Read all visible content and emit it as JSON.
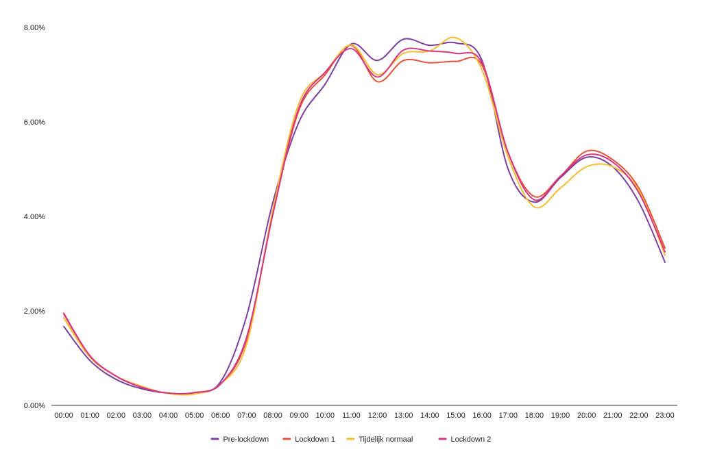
{
  "chart_data": {
    "type": "line",
    "title": "",
    "xlabel": "",
    "ylabel": "",
    "ylim": [
      0,
      8
    ],
    "y_ticks": [
      0,
      2,
      4,
      6,
      8
    ],
    "y_tick_labels": [
      "0.00%",
      "2.00%",
      "4.00%",
      "6.00%",
      "8.00%"
    ],
    "y_unit": "%",
    "grid": false,
    "legend_position": "bottom",
    "categories": [
      "00:00",
      "01:00",
      "02:00",
      "03:00",
      "04:00",
      "05:00",
      "06:00",
      "07:00",
      "08:00",
      "09:00",
      "10:00",
      "11:00",
      "12:00",
      "13:00",
      "14:00",
      "15:00",
      "16:00",
      "17:00",
      "18:00",
      "19:00",
      "20:00",
      "21:00",
      "22:00",
      "23:00"
    ],
    "series": [
      {
        "name": "Pre-lockdown",
        "color": "#7b3fa0",
        "values": [
          1.67,
          0.95,
          0.55,
          0.35,
          0.26,
          0.27,
          0.5,
          1.9,
          4.3,
          6.0,
          6.8,
          7.65,
          7.3,
          7.75,
          7.62,
          7.67,
          7.3,
          5.0,
          4.3,
          4.82,
          5.25,
          5.05,
          4.3,
          3.03
        ]
      },
      {
        "name": "Lockdown 1",
        "color": "#e8513a",
        "values": [
          1.93,
          1.05,
          0.62,
          0.38,
          0.26,
          0.27,
          0.45,
          1.4,
          4.05,
          6.25,
          7.0,
          7.62,
          6.85,
          7.3,
          7.25,
          7.28,
          7.2,
          5.35,
          4.42,
          4.85,
          5.38,
          5.2,
          4.6,
          3.33
        ]
      },
      {
        "name": "Tijdelijk normaal",
        "color": "#f6bd33",
        "values": [
          1.85,
          1.02,
          0.62,
          0.4,
          0.25,
          0.24,
          0.45,
          1.3,
          4.15,
          6.4,
          7.05,
          7.63,
          7.0,
          7.45,
          7.5,
          7.78,
          7.1,
          5.25,
          4.2,
          4.6,
          5.05,
          5.05,
          4.55,
          3.18
        ]
      },
      {
        "name": "Lockdown 2",
        "color": "#d63584",
        "values": [
          1.95,
          1.05,
          0.62,
          0.38,
          0.26,
          0.27,
          0.45,
          1.45,
          4.05,
          6.3,
          7.05,
          7.55,
          6.95,
          7.52,
          7.5,
          7.45,
          7.25,
          5.35,
          4.35,
          4.85,
          5.3,
          5.15,
          4.5,
          3.25
        ]
      }
    ]
  }
}
